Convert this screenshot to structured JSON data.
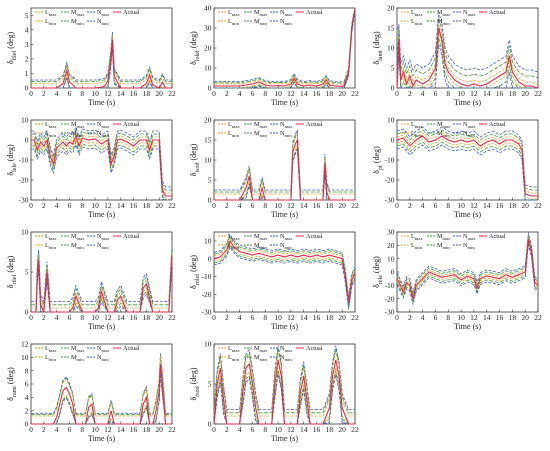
{
  "legend": {
    "entries": [
      "L_max",
      "M_max",
      "N_max",
      "Actual",
      "L_min",
      "M_min",
      "N_min"
    ],
    "labels": {
      "lmax": {
        "base": "L",
        "sub": "max"
      },
      "mmax": {
        "base": "M",
        "sub": "max"
      },
      "nmax": {
        "base": "N",
        "sub": "max"
      },
      "lmin": {
        "base": "L",
        "sub": "min"
      },
      "mmin": {
        "base": "M",
        "sub": "min"
      },
      "nmin": {
        "base": "N",
        "sub": "min"
      },
      "actual": "Actual"
    }
  },
  "colors": {
    "lmax": "#e8a320",
    "lmin": "#e8a320",
    "mmax": "#3f9a3f",
    "mmin": "#3f9a3f",
    "nmax": "#3b5ec7",
    "nmin": "#3b5ec7",
    "actual": "#e0284a"
  },
  "chart_data": [
    {
      "type": "line",
      "ylabel_base": "δ",
      "ylabel_sub": "lilef",
      "ylabel_unit": "(deg)",
      "xlabel": "Time (s)",
      "xlim": [
        0,
        22
      ],
      "ylim": [
        0,
        5.5
      ],
      "xticks": [
        0,
        2,
        4,
        6,
        8,
        10,
        12,
        14,
        16,
        18,
        20,
        22
      ],
      "yticks": [
        0,
        1,
        2,
        3,
        4,
        5
      ],
      "actual": {
        "x": [
          0,
          4,
          5,
          5.6,
          6,
          6.6,
          7,
          10,
          11.5,
          12,
          12.4,
          12.7,
          13,
          14,
          17,
          18,
          18.5,
          19,
          20,
          20.5,
          21,
          22
        ],
        "y": [
          0,
          0,
          0.3,
          1.2,
          0.4,
          0.2,
          0,
          0,
          0.1,
          0.5,
          1.8,
          3.3,
          0.8,
          0,
          0,
          0.3,
          0.9,
          0.2,
          0,
          0.4,
          0,
          0
        ]
      },
      "bands": {
        "lmax": 0.3,
        "mmax": 0.45,
        "nmax": 0.55
      }
    },
    {
      "type": "line",
      "ylabel_base": "δ",
      "ylabel_sub": "lolef",
      "ylabel_unit": "(deg)",
      "xlabel": "Time (s)",
      "xlim": [
        0,
        22
      ],
      "ylim": [
        0,
        40
      ],
      "xticks": [
        0,
        2,
        4,
        6,
        8,
        10,
        12,
        14,
        16,
        18,
        20,
        22
      ],
      "yticks": [
        0,
        10,
        20,
        30,
        40
      ],
      "actual": {
        "x": [
          0,
          4,
          5,
          6,
          7,
          8,
          9,
          10,
          11,
          12,
          12.5,
          13,
          14,
          15,
          16,
          17,
          17.5,
          18,
          19,
          20,
          20.3,
          21,
          21.5,
          22
        ],
        "y": [
          1,
          1,
          1.5,
          2,
          3,
          1.5,
          1,
          1.2,
          1,
          2,
          5,
          2,
          1,
          1.5,
          1,
          2,
          4,
          1.5,
          1,
          0.8,
          1,
          8,
          30,
          40
        ]
      },
      "bands": {
        "lmax": 1,
        "mmax": 1.6,
        "nmax": 2.2
      }
    },
    {
      "type": "line",
      "ylabel_base": "δ",
      "ylabel_sub": "lamt",
      "ylabel_unit": "(deg)",
      "xlabel": "Time (s)",
      "xlim": [
        0,
        22
      ],
      "ylim": [
        0,
        20
      ],
      "xticks": [
        0,
        2,
        4,
        6,
        8,
        10,
        12,
        14,
        16,
        18,
        20,
        22
      ],
      "yticks": [
        0,
        5,
        10,
        15,
        20
      ],
      "actual": {
        "x": [
          0,
          0.3,
          0.6,
          1,
          1.5,
          2,
          2.5,
          3,
          4,
          5,
          6,
          6.5,
          7,
          7.5,
          8,
          9,
          10,
          11,
          12,
          13,
          14,
          15,
          16,
          17,
          17.5,
          18,
          19,
          20,
          21,
          22
        ],
        "y": [
          0,
          12,
          2,
          4,
          1,
          3,
          0.5,
          2,
          1,
          2,
          5,
          15,
          12,
          6,
          4,
          2,
          1,
          0.5,
          1,
          0.5,
          1,
          2,
          3,
          4,
          8,
          4,
          1.5,
          0.5,
          0.5,
          0
        ]
      },
      "bands": {
        "lmax": 1,
        "mmax": 2.5,
        "nmax": 4
      }
    },
    {
      "type": "line",
      "ylabel_base": "δ",
      "ylabel_sub": "lele",
      "ylabel_unit": "(deg)",
      "xlabel": "Time (s)",
      "xlim": [
        0,
        22
      ],
      "ylim": [
        -30,
        10
      ],
      "xticks": [
        0,
        2,
        4,
        6,
        8,
        10,
        12,
        14,
        16,
        18,
        20,
        22
      ],
      "yticks": [
        -30,
        -20,
        -10,
        0,
        10
      ],
      "actual": {
        "x": [
          0,
          0.5,
          1,
          1.5,
          2,
          2.5,
          3,
          3.5,
          4,
          5,
          5.5,
          6,
          6.5,
          7,
          7.5,
          8,
          9,
          10,
          11,
          12,
          12.5,
          13,
          13.5,
          14,
          15,
          16,
          17,
          18,
          18.5,
          19,
          20,
          20.5,
          21,
          22
        ],
        "y": [
          0,
          0,
          -5,
          -1,
          -3,
          0,
          -8,
          -12,
          -4,
          -1,
          -3,
          -1,
          -2,
          2,
          -3,
          1,
          0,
          0.5,
          -2,
          0,
          -12,
          -8,
          0,
          0.5,
          -1,
          -3,
          0,
          0,
          -5,
          0,
          0,
          -25,
          -28,
          -28
        ]
      },
      "bands": {
        "lmax": 1.5,
        "mmax": 3,
        "nmax": 4.5
      }
    },
    {
      "type": "line",
      "ylabel_base": "δ",
      "ylabel_sub": "isod",
      "ylabel_unit": "(deg)",
      "xlabel": "Time (s)",
      "xlim": [
        0,
        22
      ],
      "ylim": [
        0,
        20
      ],
      "xticks": [
        0,
        2,
        4,
        6,
        8,
        10,
        12,
        14,
        16,
        18,
        20,
        22
      ],
      "yticks": [
        0,
        5,
        10,
        15,
        20
      ],
      "actual": {
        "x": [
          0,
          4,
          5,
          5.5,
          6,
          7,
          7.5,
          8,
          9,
          10,
          11,
          12,
          12.3,
          12.7,
          13,
          13.5,
          14,
          15,
          16,
          17,
          17.3,
          17.6,
          18,
          19,
          20,
          21,
          22
        ],
        "y": [
          0,
          0,
          3,
          6,
          0,
          0,
          3,
          0,
          0,
          0,
          0,
          0,
          12,
          14,
          15,
          0,
          0,
          0,
          0,
          0,
          9,
          2,
          0,
          0,
          0,
          0,
          0
        ]
      },
      "bands": {
        "lmax": 1.5,
        "mmax": 2,
        "nmax": 2.5
      }
    },
    {
      "type": "line",
      "ylabel_base": "δ",
      "ylabel_sub": "pf",
      "ylabel_unit": "(deg)",
      "xlabel": "Time (s)",
      "xlim": [
        0,
        22
      ],
      "ylim": [
        -30,
        10
      ],
      "xticks": [
        0,
        2,
        4,
        6,
        8,
        10,
        12,
        14,
        16,
        18,
        20,
        22
      ],
      "yticks": [
        -30,
        -20,
        -10,
        0,
        10
      ],
      "actual": {
        "x": [
          0,
          1,
          2,
          3,
          4,
          5,
          6,
          7,
          8,
          9,
          10,
          11,
          12,
          13,
          14,
          15,
          16,
          17,
          18,
          19,
          19.5,
          20,
          21,
          22
        ],
        "y": [
          0,
          1,
          -3,
          0,
          2,
          -1,
          0,
          2,
          0,
          -1,
          0,
          -1,
          0,
          -3,
          -1,
          0,
          -2,
          0,
          0,
          -2,
          -5,
          -27,
          -28,
          -28
        ]
      },
      "bands": {
        "lmax": 1.5,
        "mmax": 3,
        "nmax": 4.5
      }
    },
    {
      "type": "line",
      "ylabel_base": "δ",
      "ylabel_sub": "rilef",
      "ylabel_unit": "(deg)",
      "xlabel": "Time (s)",
      "xlim": [
        0,
        22
      ],
      "ylim": [
        0,
        10
      ],
      "xticks": [
        0,
        2,
        4,
        6,
        8,
        10,
        12,
        14,
        16,
        18,
        20,
        22
      ],
      "yticks": [
        0,
        5,
        10
      ],
      "actual": {
        "x": [
          0,
          0.8,
          1,
          1.2,
          1.5,
          2,
          2.5,
          3,
          4,
          5,
          6,
          6.5,
          7,
          8,
          9,
          10,
          10.5,
          11,
          12,
          13,
          13.5,
          14,
          15,
          16,
          17,
          17.5,
          18,
          19,
          20,
          21,
          21.5,
          22
        ],
        "y": [
          0,
          0,
          5,
          6.5,
          1,
          0,
          5,
          0,
          0,
          0,
          0,
          0.5,
          2,
          0,
          0,
          0,
          0.5,
          2.5,
          0,
          0,
          1.5,
          2,
          0,
          0,
          0,
          3,
          3.5,
          0,
          0,
          0,
          0,
          7
        ]
      },
      "bands": {
        "lmax": 0.5,
        "mmax": 0.9,
        "nmax": 1.3
      }
    },
    {
      "type": "line",
      "ylabel_base": "δ",
      "ylabel_sub": "rolef",
      "ylabel_unit": "(deg)",
      "xlabel": "Time (s)",
      "xlim": [
        0,
        22
      ],
      "ylim": [
        -30,
        15
      ],
      "xticks": [
        0,
        2,
        4,
        6,
        8,
        10,
        12,
        14,
        16,
        18,
        20,
        22
      ],
      "yticks": [
        -30,
        -20,
        -10,
        0,
        10
      ],
      "actual": {
        "x": [
          0,
          1,
          2,
          2.5,
          3,
          4,
          5,
          6,
          7,
          8,
          9,
          10,
          11,
          12,
          13,
          14,
          15,
          16,
          17,
          18,
          19,
          20,
          20.5,
          21,
          21.5,
          22
        ],
        "y": [
          0,
          1,
          5,
          10,
          7,
          4,
          3,
          2,
          3,
          2,
          1,
          2,
          1,
          2,
          1,
          2,
          1,
          2,
          1,
          2,
          1,
          0,
          -10,
          -25,
          -12,
          -8
        ]
      },
      "bands": {
        "lmax": 1.5,
        "mmax": 2.5,
        "nmax": 3.5
      }
    },
    {
      "type": "line",
      "ylabel_base": "δ",
      "ylabel_sub": "rele",
      "ylabel_unit": "(deg)",
      "xlabel": "Time (s)",
      "xlim": [
        0,
        22
      ],
      "ylim": [
        -30,
        30
      ],
      "xticks": [
        0,
        2,
        4,
        6,
        8,
        10,
        12,
        14,
        16,
        18,
        20,
        22
      ],
      "yticks": [
        -30,
        -20,
        -10,
        0,
        10,
        20,
        30
      ],
      "actual": {
        "x": [
          0,
          0.5,
          1,
          1.5,
          2,
          2.5,
          3,
          4,
          5,
          6,
          7,
          8,
          9,
          10,
          11,
          12,
          12.5,
          13,
          14,
          15,
          16,
          17,
          18,
          19,
          20,
          20.5,
          21,
          21.5,
          22
        ],
        "y": [
          -5,
          -10,
          -15,
          -8,
          -10,
          -20,
          -10,
          -5,
          0,
          -2,
          -4,
          -3,
          -2,
          -6,
          -3,
          -5,
          -12,
          -5,
          -3,
          -4,
          -5,
          -2,
          -4,
          -2,
          0,
          25,
          15,
          -8,
          -10
        ]
      },
      "bands": {
        "lmax": 1.5,
        "mmax": 3,
        "nmax": 4.5
      }
    },
    {
      "type": "line",
      "ylabel_base": "δ",
      "ylabel_sub": "ramt",
      "ylabel_unit": "(deg)",
      "xlabel": "Time (s)",
      "xlim": [
        0,
        22
      ],
      "ylim": [
        0,
        12
      ],
      "xticks": [
        0,
        2,
        4,
        6,
        8,
        10,
        12,
        14,
        16,
        18,
        20,
        22
      ],
      "yticks": [
        0,
        2,
        4,
        6,
        8,
        10,
        12
      ],
      "actual": {
        "x": [
          0,
          3.5,
          4,
          4.5,
          5,
          5.5,
          6,
          6.5,
          7,
          8,
          8.5,
          9,
          9.5,
          10,
          11,
          12,
          12.5,
          13,
          14,
          15,
          16,
          17,
          17.5,
          18,
          18.5,
          19,
          19.5,
          20,
          20.2,
          20.5,
          21,
          22
        ],
        "y": [
          0,
          0,
          1,
          3,
          5,
          5.5,
          4.5,
          3,
          0,
          0,
          0,
          2.5,
          3,
          0,
          0,
          0,
          2,
          0,
          0,
          0,
          0,
          0,
          3,
          4,
          0,
          0,
          2,
          5,
          9,
          6,
          0,
          0
        ]
      },
      "bands": {
        "lmax": 1.2,
        "mmax": 1.4,
        "nmax": 1.6
      }
    },
    {
      "type": "line",
      "ylabel_base": "δ",
      "ylabel_sub": "rsod",
      "ylabel_unit": "(deg)",
      "xlabel": "Time (s)",
      "xlim": [
        0,
        22
      ],
      "ylim": [
        0,
        10
      ],
      "xticks": [
        0,
        2,
        4,
        6,
        8,
        10,
        12,
        14,
        16,
        18,
        20,
        22
      ],
      "yticks": [
        0,
        5,
        10
      ],
      "actual": {
        "x": [
          0,
          0.5,
          1,
          1.5,
          2,
          3,
          4,
          4.5,
          5,
          5.5,
          6,
          6.5,
          7,
          8,
          9,
          9.5,
          10,
          10.5,
          11,
          12,
          13,
          13.5,
          14,
          14.5,
          15,
          16,
          17,
          18,
          18.5,
          19,
          19.5,
          20,
          21,
          22
        ],
        "y": [
          0,
          5,
          7,
          3,
          0,
          0,
          0,
          4,
          7,
          7.5,
          5,
          2,
          0,
          0,
          0,
          5,
          8,
          6,
          0,
          0,
          0,
          4,
          6,
          3,
          0,
          0,
          0,
          2,
          6,
          8,
          6,
          2,
          0,
          0
        ]
      },
      "bands": {
        "lmax": 1.0,
        "mmax": 1.4,
        "nmax": 1.8
      }
    }
  ]
}
